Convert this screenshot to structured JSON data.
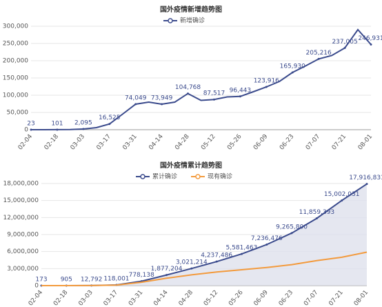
{
  "chart_data": [
    {
      "type": "line",
      "title": "国外疫情新增趋势图",
      "categories": [
        "02-04",
        null,
        "02-18",
        null,
        "03-03",
        null,
        "03-17",
        null,
        "03-31",
        null,
        "04-14",
        null,
        "04-28",
        null,
        "05-12",
        null,
        "05-26",
        null,
        "06-09",
        null,
        "06-23",
        null,
        "07-07",
        null,
        "07-21",
        null,
        "08-01"
      ],
      "series": [
        {
          "name": "新增确诊",
          "color": "#3a4a8c",
          "values": [
            23,
            50,
            101,
            600,
            2095,
            6000,
            16525,
            45000,
            74049,
            80000,
            73949,
            80000,
            104768,
            85000,
            87517,
            95000,
            96443,
            110000,
            123916,
            140000,
            165930,
            185000,
            205216,
            215000,
            237005,
            290000,
            246931
          ],
          "value_labels": [
            "23",
            null,
            "101",
            null,
            "2,095",
            null,
            "16,525",
            null,
            "74,049",
            null,
            "73,949",
            null,
            "104,768",
            null,
            "87,517",
            null,
            "96,443",
            null,
            "123,916",
            null,
            "165,930",
            null,
            "205,216",
            null,
            "237,005",
            null,
            "246,931"
          ]
        }
      ],
      "ylim": [
        0,
        300000
      ],
      "yticks": [
        0,
        {
          "value": 50000,
          "label": "50,000"
        },
        {
          "value": 100000,
          "label": "100,000"
        },
        {
          "value": 150000,
          "label": "150,000"
        },
        {
          "value": 200000,
          "label": "200,000"
        },
        {
          "value": 250000,
          "label": "250,000"
        },
        {
          "value": 300000,
          "label": "300,000"
        }
      ],
      "grid": true
    },
    {
      "type": "line",
      "title": "国外疫情累计趋势图",
      "categories": [
        "02-04",
        "02-18",
        "03-03",
        "03-17",
        "03-31",
        "04-14",
        "04-28",
        "05-12",
        "05-26",
        "06-09",
        "06-23",
        "07-07",
        "07-21",
        "08-01"
      ],
      "series": [
        {
          "name": "累计确诊",
          "color": "#3a4a8c",
          "area": true,
          "values": [
            173,
            905,
            12792,
            118001,
            778138,
            1877204,
            3021214,
            4237486,
            5581463,
            7236476,
            9265800,
            11859393,
            15002031,
            17916831
          ],
          "value_labels": [
            "173",
            "905",
            "12,792",
            "118,001",
            "778,138",
            "1,877,204",
            "3,021,214",
            "4,237,486",
            "5,581,463",
            "7,236,476",
            "9,265,800",
            "11,859,393",
            "15,002,031",
            "17,916,831"
          ]
        },
        {
          "name": "现有确诊",
          "color": "#f39a3c",
          "values": [
            100,
            500,
            8000,
            90000,
            600000,
            1300000,
            1900000,
            2400000,
            2800000,
            3200000,
            3700000,
            4400000,
            5000000,
            5900000
          ]
        }
      ],
      "ylim": [
        0,
        18000000
      ],
      "yticks": [
        0,
        {
          "value": 3000000,
          "label": "3,000,000"
        },
        {
          "value": 6000000,
          "label": "6,000,000"
        },
        {
          "value": 9000000,
          "label": "9,000,000"
        },
        {
          "value": 12000000,
          "label": "12,000,000"
        },
        {
          "value": 15000000,
          "label": "15,000,000"
        },
        {
          "value": 18000000,
          "label": "18,000,000"
        }
      ],
      "grid": true
    }
  ]
}
